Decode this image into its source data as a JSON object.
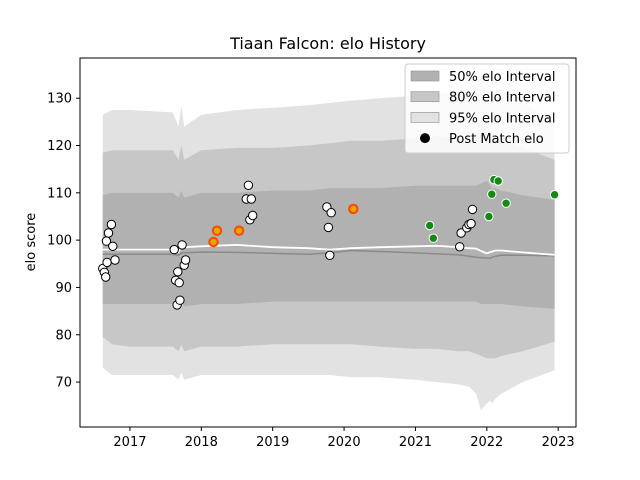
{
  "chart_data": {
    "type": "scatter",
    "title": "Tiaan Falcon: elo History",
    "xlabel": "",
    "ylabel": "elo score",
    "xlim": [
      2016.3,
      2023.25
    ],
    "ylim": [
      60.5,
      138.5
    ],
    "x_ticks": [
      2017,
      2018,
      2019,
      2020,
      2021,
      2022,
      2023
    ],
    "y_ticks": [
      70,
      80,
      90,
      100,
      110,
      120,
      130
    ],
    "grid": false,
    "legend_position": "top-right",
    "legend": [
      {
        "label": "50% elo Interval",
        "kind": "band50"
      },
      {
        "label": "80% elo Interval",
        "kind": "band80"
      },
      {
        "label": "95% elo Interval",
        "kind": "band95"
      },
      {
        "label": "Post Match elo",
        "kind": "marker"
      }
    ],
    "colors": {
      "band50": "#b1b1b1",
      "band80": "#c7c7c7",
      "band95": "#e2e2e2",
      "mean_line": "#ffffff",
      "median_line": "#8a8a8a",
      "marker_face_default": "#ffffff",
      "marker_face_win": "#138a13",
      "marker_face_highlight": "#ff4500",
      "marker_face_highlight_inner": "#e5a800",
      "marker_edge": "#000000"
    },
    "bands": {
      "x": [
        2016.62,
        2016.75,
        2017.0,
        2017.6,
        2017.68,
        2017.72,
        2017.76,
        2018.0,
        2018.5,
        2019.0,
        2019.5,
        2019.8,
        2020.1,
        2020.5,
        2021.0,
        2021.3,
        2021.6,
        2021.75,
        2021.85,
        2021.92,
        2022.0,
        2022.05,
        2022.08,
        2022.12,
        2022.2,
        2022.5,
        2022.95
      ],
      "p95_upper": [
        126.5,
        127.5,
        127.5,
        127.0,
        124.0,
        128.5,
        124.0,
        126.5,
        127.5,
        128.0,
        128.5,
        129.0,
        129.5,
        130.0,
        130.5,
        131.0,
        131.5,
        132.0,
        134.0,
        134.5,
        135.0,
        132.0,
        130.0,
        131.5,
        132.0,
        129.0,
        125.5
      ],
      "p80_upper": [
        118.5,
        119.0,
        119.0,
        119.0,
        117.0,
        120.0,
        117.0,
        119.0,
        119.5,
        119.5,
        120.0,
        120.5,
        121.0,
        121.0,
        121.5,
        122.0,
        121.5,
        121.5,
        122.0,
        123.5,
        125.5,
        123.5,
        122.0,
        122.0,
        121.5,
        119.5,
        117.0
      ],
      "p50_upper": [
        109.5,
        110.0,
        110.0,
        110.0,
        109.0,
        110.5,
        109.0,
        110.0,
        110.0,
        110.5,
        110.5,
        111.0,
        111.0,
        111.0,
        111.5,
        111.5,
        111.5,
        111.5,
        111.5,
        112.0,
        112.5,
        111.5,
        111.0,
        111.0,
        110.5,
        109.5,
        108.5
      ],
      "p50_lower": [
        86.5,
        86.5,
        86.5,
        86.5,
        86.0,
        87.0,
        86.0,
        86.5,
        86.5,
        87.0,
        87.0,
        87.0,
        87.0,
        87.0,
        87.0,
        87.0,
        87.0,
        87.0,
        87.0,
        86.5,
        86.5,
        86.5,
        86.5,
        86.5,
        86.5,
        86.0,
        85.5
      ],
      "p80_lower": [
        79.5,
        78.0,
        77.5,
        77.5,
        76.5,
        78.0,
        76.5,
        77.5,
        77.5,
        78.0,
        78.0,
        78.0,
        78.0,
        77.5,
        77.0,
        77.0,
        76.5,
        76.5,
        76.0,
        75.5,
        75.0,
        75.0,
        75.0,
        75.0,
        75.5,
        76.5,
        78.5
      ],
      "p95_lower": [
        73.0,
        71.5,
        71.5,
        71.5,
        70.5,
        72.0,
        70.5,
        71.5,
        71.5,
        71.5,
        71.5,
        71.5,
        71.0,
        71.0,
        70.5,
        70.0,
        69.5,
        69.0,
        67.5,
        64.0,
        65.5,
        66.0,
        65.5,
        66.5,
        67.5,
        70.0,
        72.5
      ],
      "mean": [
        98.0,
        98.0,
        98.0,
        98.0,
        97.5,
        98.5,
        98.5,
        98.7,
        99.0,
        98.5,
        98.3,
        98.0,
        98.3,
        98.5,
        98.7,
        98.8,
        98.5,
        98.3,
        98.2,
        97.7,
        97.2,
        97.5,
        97.6,
        97.8,
        97.8,
        97.4,
        96.9
      ],
      "median": [
        97.0,
        97.0,
        97.0,
        97.0,
        96.8,
        97.3,
        97.3,
        97.5,
        97.4,
        97.2,
        97.0,
        97.3,
        97.8,
        97.6,
        97.3,
        97.1,
        96.9,
        96.6,
        96.4,
        96.3,
        96.2,
        96.2,
        96.4,
        96.6,
        96.8,
        96.8,
        96.7
      ]
    },
    "points": [
      {
        "x": 2016.62,
        "y": 94.0,
        "kind": "default"
      },
      {
        "x": 2016.64,
        "y": 93.2,
        "kind": "default"
      },
      {
        "x": 2016.66,
        "y": 92.2,
        "kind": "default"
      },
      {
        "x": 2016.68,
        "y": 95.3,
        "kind": "default"
      },
      {
        "x": 2016.67,
        "y": 99.8,
        "kind": "default"
      },
      {
        "x": 2016.7,
        "y": 101.5,
        "kind": "default"
      },
      {
        "x": 2016.74,
        "y": 103.3,
        "kind": "default"
      },
      {
        "x": 2016.76,
        "y": 98.7,
        "kind": "default"
      },
      {
        "x": 2016.79,
        "y": 95.8,
        "kind": "default"
      },
      {
        "x": 2017.62,
        "y": 98.0,
        "kind": "default"
      },
      {
        "x": 2017.64,
        "y": 91.5,
        "kind": "default"
      },
      {
        "x": 2017.66,
        "y": 86.3,
        "kind": "default"
      },
      {
        "x": 2017.67,
        "y": 93.3,
        "kind": "default"
      },
      {
        "x": 2017.69,
        "y": 91.0,
        "kind": "default"
      },
      {
        "x": 2017.7,
        "y": 87.3,
        "kind": "default"
      },
      {
        "x": 2017.73,
        "y": 99.0,
        "kind": "default"
      },
      {
        "x": 2017.76,
        "y": 94.7,
        "kind": "default"
      },
      {
        "x": 2017.78,
        "y": 95.8,
        "kind": "default"
      },
      {
        "x": 2018.17,
        "y": 99.6,
        "kind": "highlight"
      },
      {
        "x": 2018.22,
        "y": 102.0,
        "kind": "highlight"
      },
      {
        "x": 2018.53,
        "y": 102.0,
        "kind": "highlight"
      },
      {
        "x": 2018.63,
        "y": 108.7,
        "kind": "default"
      },
      {
        "x": 2018.66,
        "y": 111.6,
        "kind": "default"
      },
      {
        "x": 2018.68,
        "y": 104.3,
        "kind": "default"
      },
      {
        "x": 2018.7,
        "y": 108.7,
        "kind": "default"
      },
      {
        "x": 2018.72,
        "y": 105.2,
        "kind": "default"
      },
      {
        "x": 2019.76,
        "y": 107.0,
        "kind": "default"
      },
      {
        "x": 2019.78,
        "y": 102.7,
        "kind": "default"
      },
      {
        "x": 2019.8,
        "y": 96.8,
        "kind": "default"
      },
      {
        "x": 2019.82,
        "y": 105.8,
        "kind": "default"
      },
      {
        "x": 2020.13,
        "y": 106.6,
        "kind": "highlight"
      },
      {
        "x": 2021.2,
        "y": 103.1,
        "kind": "win"
      },
      {
        "x": 2021.25,
        "y": 100.4,
        "kind": "win"
      },
      {
        "x": 2021.62,
        "y": 98.6,
        "kind": "default"
      },
      {
        "x": 2021.64,
        "y": 101.5,
        "kind": "default"
      },
      {
        "x": 2021.72,
        "y": 102.6,
        "kind": "default"
      },
      {
        "x": 2021.75,
        "y": 103.3,
        "kind": "default"
      },
      {
        "x": 2021.78,
        "y": 103.5,
        "kind": "default"
      },
      {
        "x": 2021.8,
        "y": 106.5,
        "kind": "default"
      },
      {
        "x": 2022.03,
        "y": 105.0,
        "kind": "win"
      },
      {
        "x": 2022.07,
        "y": 109.7,
        "kind": "win"
      },
      {
        "x": 2022.1,
        "y": 112.8,
        "kind": "win"
      },
      {
        "x": 2022.16,
        "y": 112.5,
        "kind": "win"
      },
      {
        "x": 2022.27,
        "y": 107.8,
        "kind": "win"
      },
      {
        "x": 2022.95,
        "y": 109.6,
        "kind": "win"
      }
    ]
  }
}
